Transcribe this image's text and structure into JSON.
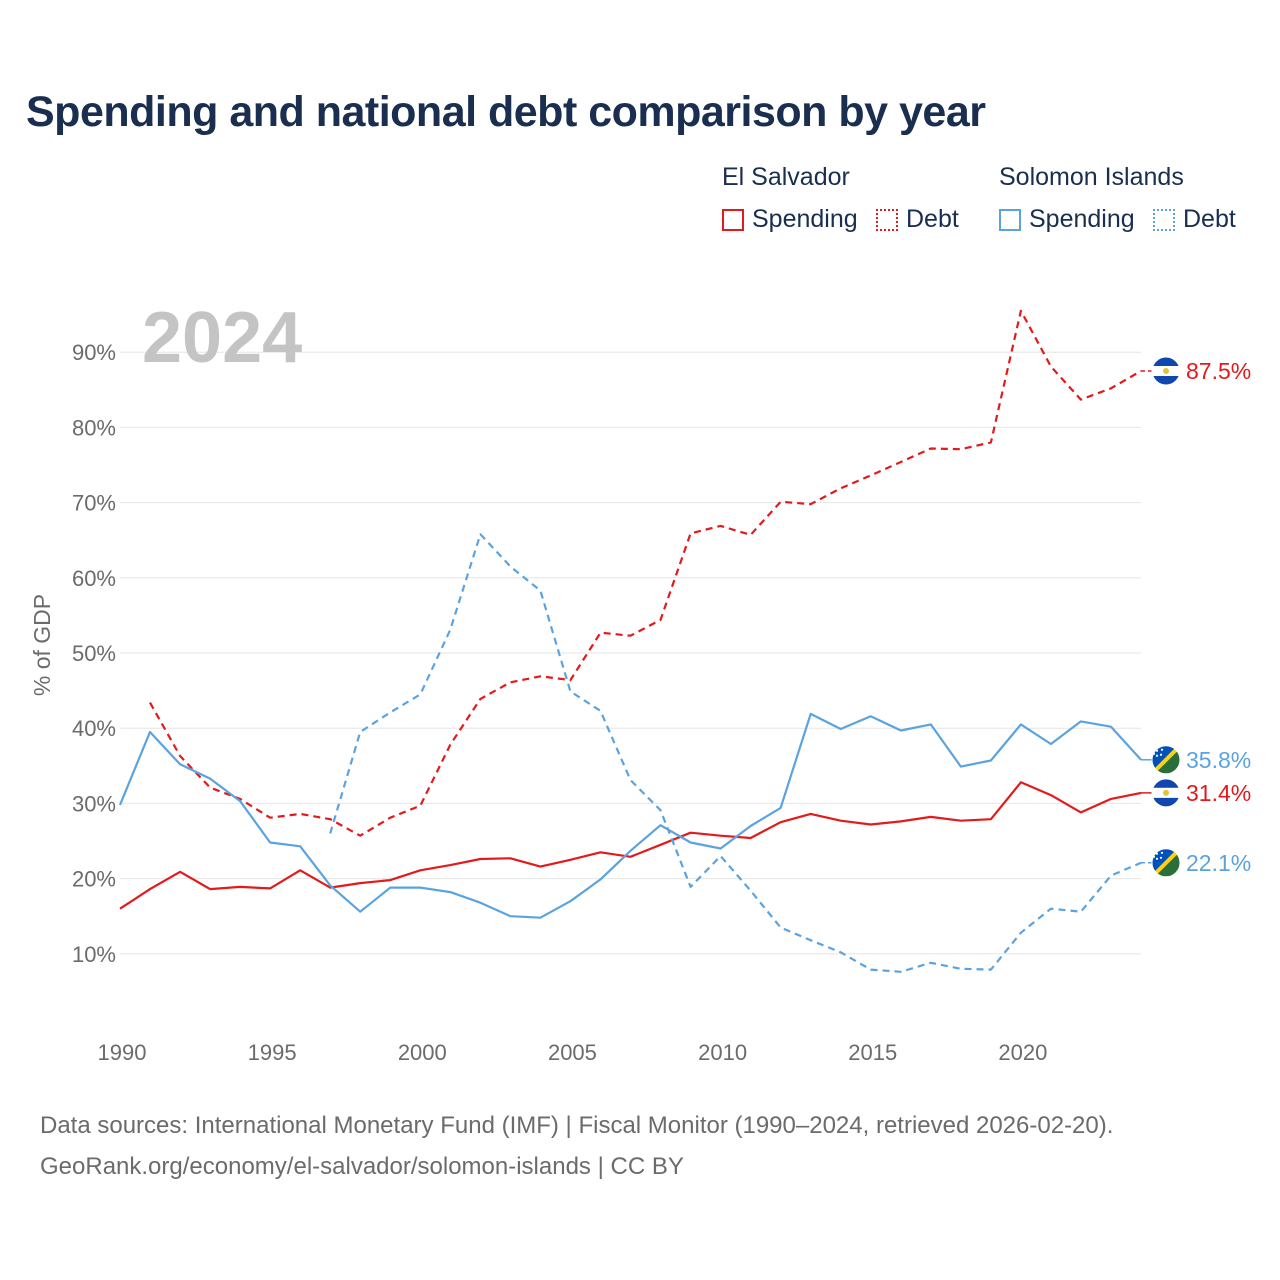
{
  "title": "Spending and national debt comparison by year",
  "legend": {
    "el_salvador": {
      "name": "El Salvador",
      "spending": "Spending",
      "debt": "Debt",
      "color": "#e31a1c"
    },
    "solomon": {
      "name": "Solomon Islands",
      "spending": "Spending",
      "debt": "Debt",
      "color": "#5ba3e0"
    }
  },
  "year_label": "2024",
  "source": {
    "line1": "Data sources: International Monetary Fund (IMF) | Fiscal Monitor (1990–2024, retrieved 2026-02-20).",
    "line2": "GeoRank.org/economy/el-salvador/solomon-islands | CC BY"
  },
  "chart_data": {
    "type": "line",
    "ylabel": "% of GDP",
    "xlabel": "",
    "xlim": [
      1990,
      2024
    ],
    "ylim": [
      0,
      100
    ],
    "x_ticks": [
      "1990",
      "1995",
      "2000",
      "2005",
      "2010",
      "2015",
      "2020"
    ],
    "y_ticks": [
      {
        "value": 10,
        "label": "10%"
      },
      {
        "value": 20,
        "label": "20%"
      },
      {
        "value": 30,
        "label": "30%"
      },
      {
        "value": 40,
        "label": "40%"
      },
      {
        "value": 50,
        "label": "50%"
      },
      {
        "value": 60,
        "label": "60%"
      },
      {
        "value": 70,
        "label": "70%"
      },
      {
        "value": 80,
        "label": "80%"
      },
      {
        "value": 90,
        "label": "90%"
      }
    ],
    "grid": true,
    "series": [
      {
        "name": "El Salvador Spending",
        "color": "#e31a1c",
        "dashed": false,
        "flag": "el-salvador",
        "end_label": "31.4%",
        "x": [
          1990,
          1991,
          1992,
          1993,
          1994,
          1995,
          1996,
          1997,
          1998,
          1999,
          2000,
          2001,
          2002,
          2003,
          2004,
          2005,
          2006,
          2007,
          2008,
          2009,
          2010,
          2011,
          2012,
          2013,
          2014,
          2015,
          2016,
          2017,
          2018,
          2019,
          2020,
          2021,
          2022,
          2023,
          2024
        ],
        "values": [
          16.0,
          18.6,
          20.9,
          18.6,
          18.9,
          18.7,
          21.1,
          18.8,
          19.4,
          19.8,
          21.1,
          21.8,
          22.6,
          22.7,
          21.6,
          22.5,
          23.5,
          22.9,
          24.5,
          26.1,
          25.7,
          25.4,
          27.5,
          28.6,
          27.7,
          27.2,
          27.6,
          28.2,
          27.7,
          27.9,
          32.8,
          31.1,
          28.8,
          30.6,
          31.4
        ]
      },
      {
        "name": "El Salvador Debt",
        "color": "#e31a1c",
        "dashed": true,
        "flag": "el-salvador",
        "end_label": "87.5%",
        "x": [
          1991,
          1992,
          1993,
          1994,
          1995,
          1996,
          1997,
          1998,
          1999,
          2000,
          2001,
          2002,
          2003,
          2004,
          2005,
          2006,
          2007,
          2008,
          2009,
          2010,
          2011,
          2012,
          2013,
          2014,
          2015,
          2016,
          2017,
          2018,
          2019,
          2020,
          2021,
          2022,
          2023,
          2024
        ],
        "values": [
          43.4,
          36.3,
          32.1,
          30.6,
          28.1,
          28.6,
          27.9,
          25.7,
          28.1,
          29.7,
          37.8,
          43.9,
          46.1,
          46.9,
          46.4,
          52.7,
          52.3,
          54.4,
          65.9,
          66.9,
          65.7,
          70.1,
          69.8,
          71.9,
          73.6,
          75.4,
          77.2,
          77.1,
          78.0,
          95.5,
          88.1,
          83.7,
          85.2,
          87.5
        ]
      },
      {
        "name": "Solomon Islands Spending",
        "color": "#5ba3e0",
        "dashed": false,
        "flag": "solomon-islands",
        "end_label": "35.8%",
        "x": [
          1990,
          1991,
          1992,
          1993,
          1994,
          1995,
          1996,
          1997,
          1998,
          1999,
          2000,
          2001,
          2002,
          2003,
          2004,
          2005,
          2006,
          2007,
          2008,
          2009,
          2010,
          2011,
          2012,
          2013,
          2014,
          2015,
          2016,
          2017,
          2018,
          2019,
          2020,
          2021,
          2022,
          2023,
          2024
        ],
        "values": [
          29.8,
          39.5,
          35.2,
          33.3,
          30.3,
          24.8,
          24.3,
          19.1,
          15.6,
          18.8,
          18.8,
          18.2,
          16.8,
          15.0,
          14.8,
          17.0,
          19.9,
          23.7,
          27.1,
          24.8,
          24.0,
          27.0,
          29.4,
          41.9,
          39.9,
          41.6,
          39.7,
          40.5,
          34.9,
          35.7,
          40.5,
          37.9,
          40.9,
          40.2,
          35.8
        ]
      },
      {
        "name": "Solomon Islands Debt",
        "color": "#5ba3e0",
        "dashed": true,
        "flag": "solomon-islands",
        "end_label": "22.1%",
        "x": [
          1997,
          1998,
          1999,
          2000,
          2001,
          2002,
          2003,
          2004,
          2005,
          2006,
          2007,
          2008,
          2009,
          2010,
          2011,
          2012,
          2013,
          2014,
          2015,
          2016,
          2017,
          2018,
          2019,
          2020,
          2021,
          2022,
          2023,
          2024
        ],
        "values": [
          26.0,
          39.5,
          42.1,
          44.5,
          53.1,
          65.8,
          61.5,
          58.3,
          44.9,
          42.3,
          33.1,
          29.1,
          18.9,
          23.0,
          18.4,
          13.5,
          11.8,
          10.2,
          7.9,
          7.6,
          8.8,
          8.0,
          7.9,
          12.8,
          16.0,
          15.6,
          20.4,
          22.1
        ]
      }
    ]
  }
}
